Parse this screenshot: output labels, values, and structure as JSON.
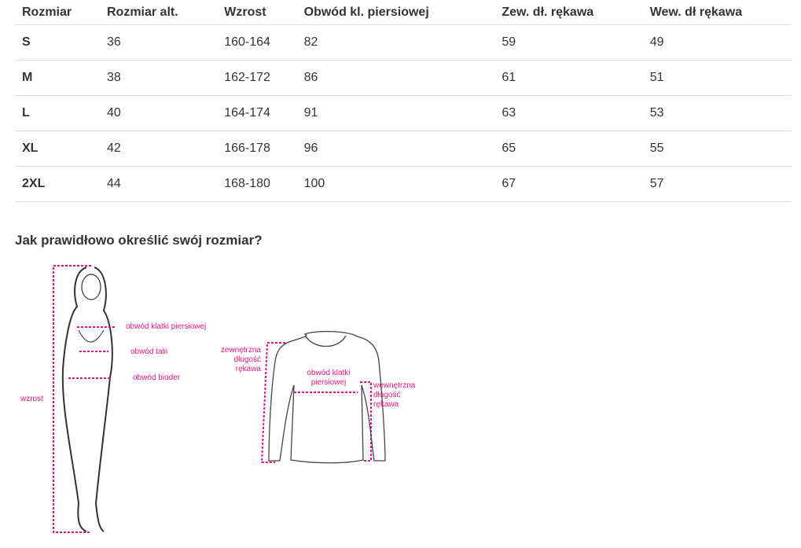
{
  "table": {
    "headers": [
      "Rozmiar",
      "Rozmiar alt.",
      "Wzrost",
      "Obwód kl. piersiowej",
      "Zew. dł. rękawa",
      "Wew. dł rękawa"
    ],
    "rows": [
      [
        "S",
        "36",
        "160-164",
        "82",
        "59",
        "49"
      ],
      [
        "M",
        "38",
        "162-172",
        "86",
        "61",
        "51"
      ],
      [
        "L",
        "40",
        "164-174",
        "91",
        "63",
        "53"
      ],
      [
        "XL",
        "42",
        "166-178",
        "96",
        "65",
        "55"
      ],
      [
        "2XL",
        "44",
        "168-180",
        "100",
        "67",
        "57"
      ]
    ]
  },
  "guide": {
    "title": "Jak prawidłowo określić swój rozmiar?",
    "accent": "#e5157f",
    "body_labels": {
      "chest": "obwód klatki piersiowej",
      "waist": "obwód talii",
      "hips": "obwód bioder",
      "height": "wzrost"
    },
    "shirt_labels": {
      "outer_sleeve": "zewnętrzna długość rękawa",
      "chest": "obwód klatki piersiowej",
      "inner_sleeve": "wewnętrzna długość rękawa"
    }
  }
}
